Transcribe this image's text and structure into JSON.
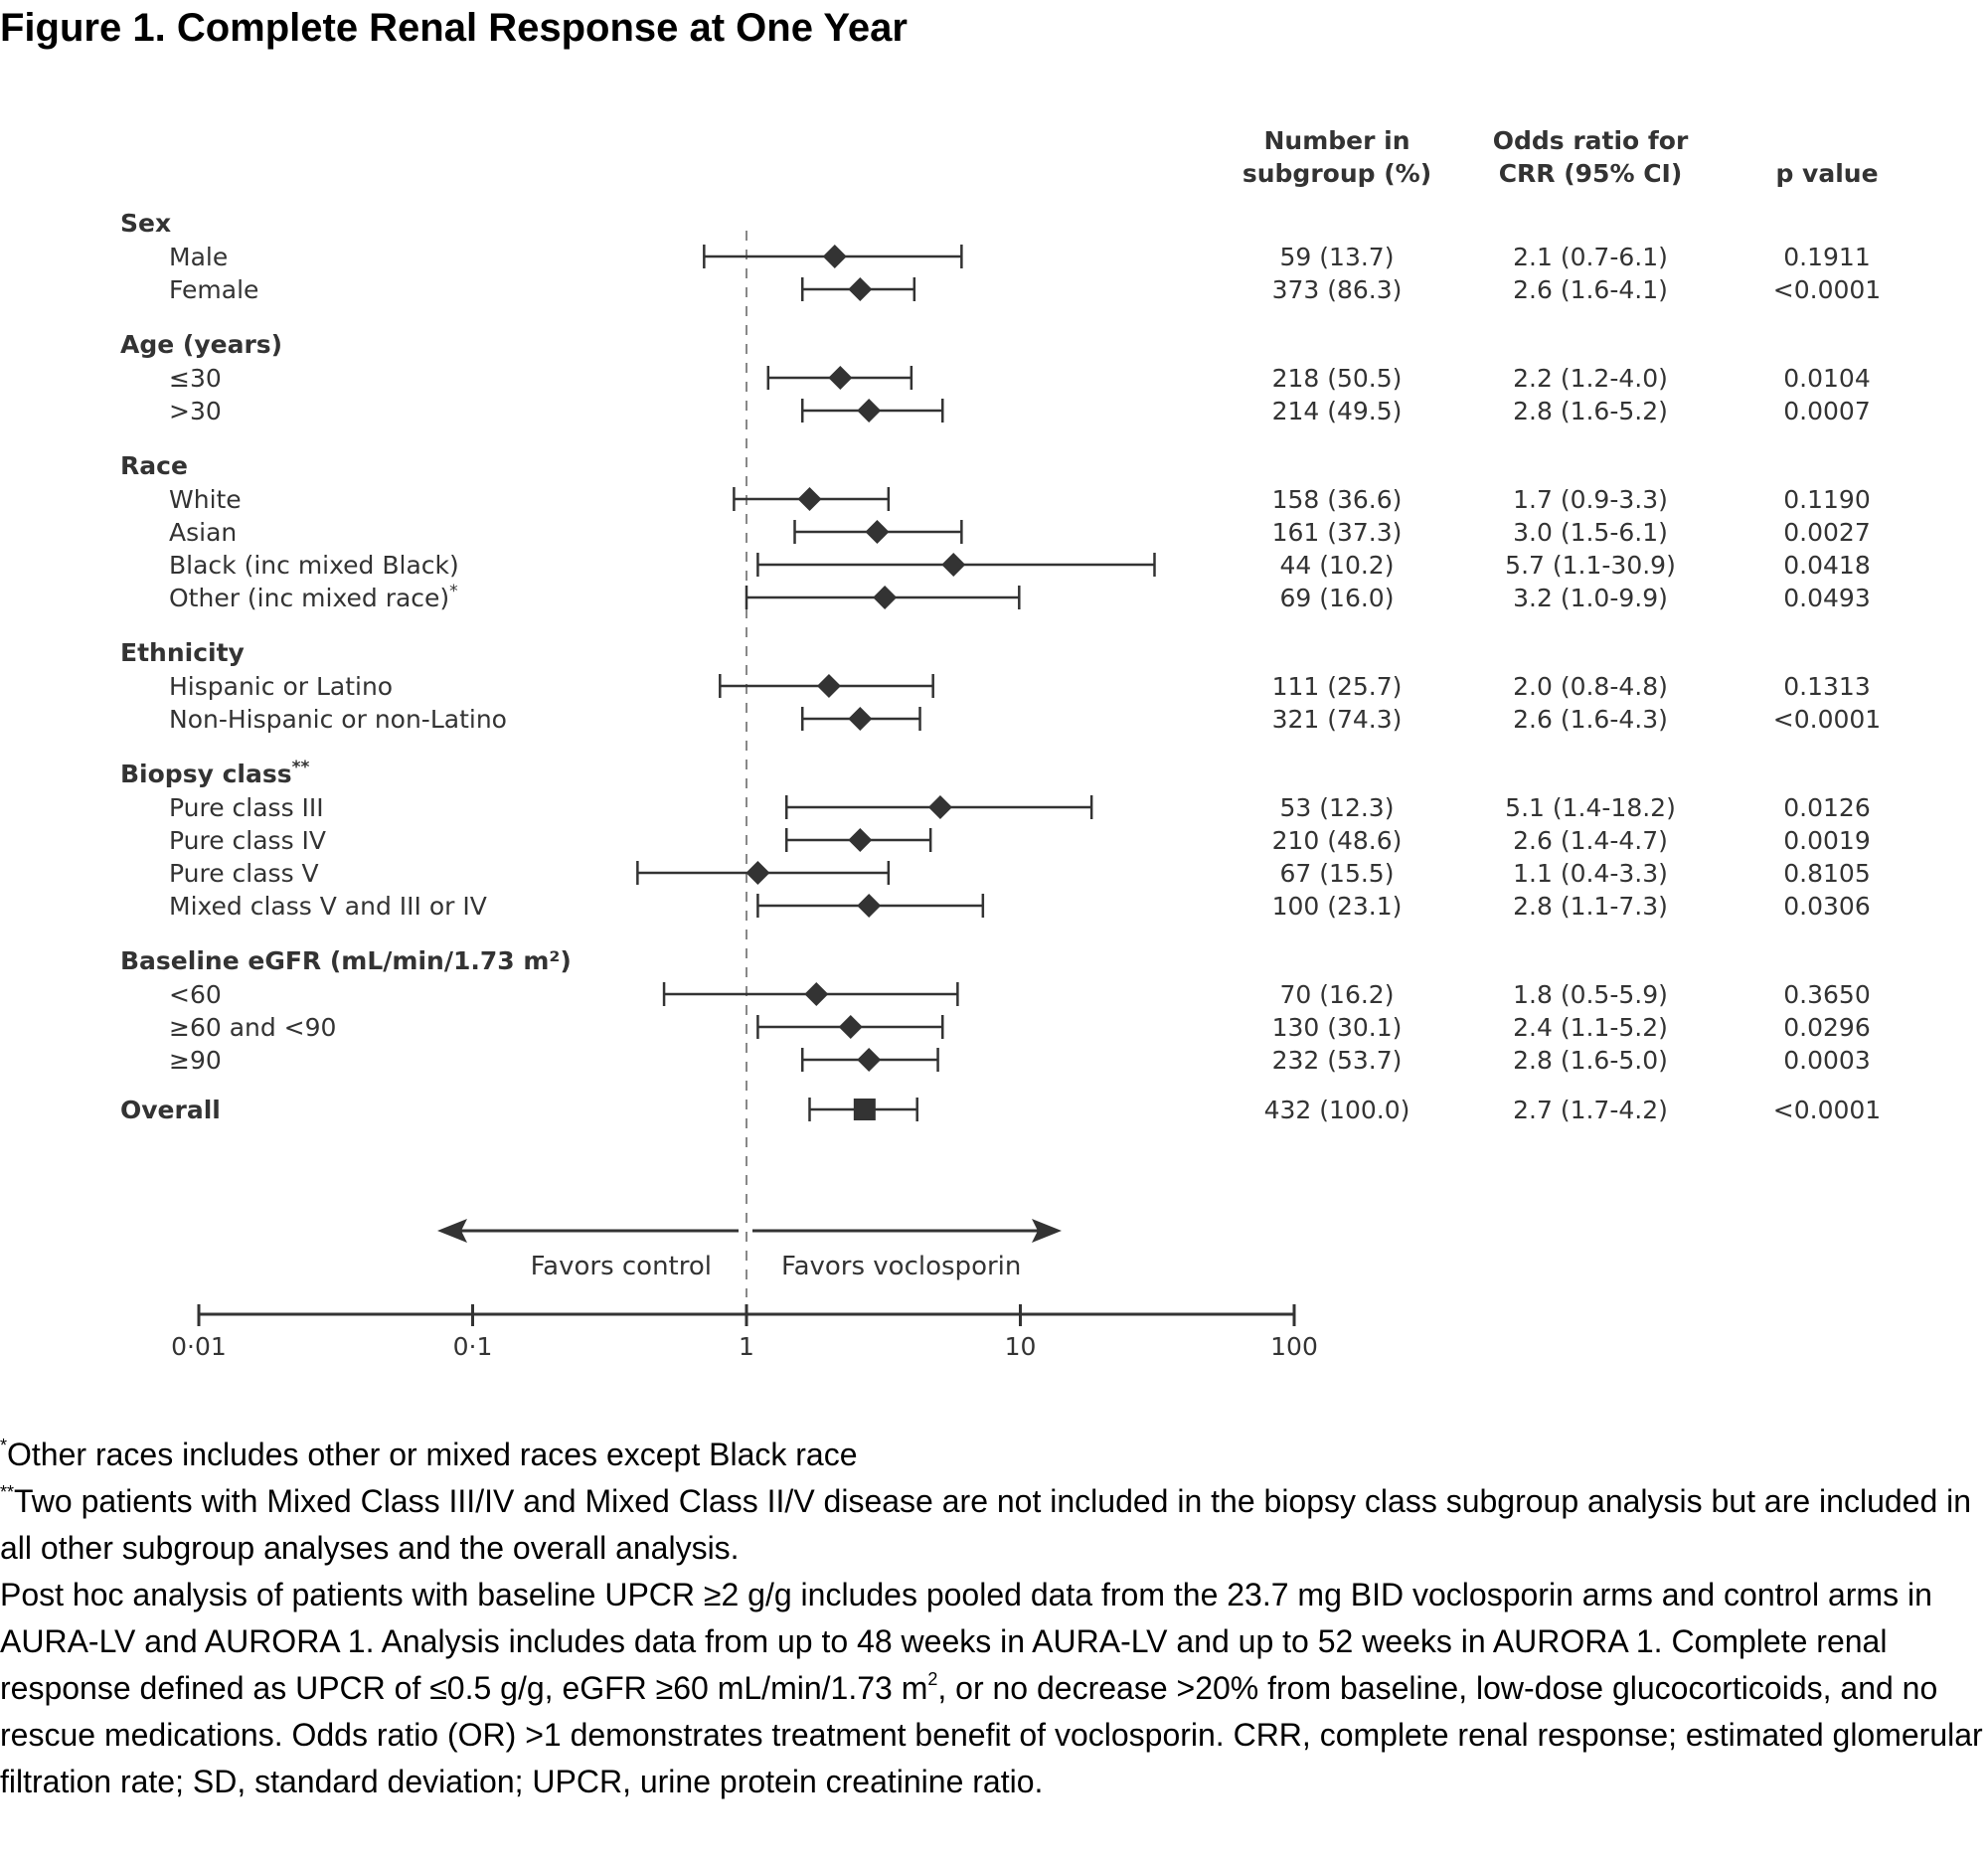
{
  "title": "Figure 1. Complete Renal Response at One Year",
  "chart_data": {
    "type": "forest",
    "x_scale": "log",
    "xlim": [
      0.01,
      100
    ],
    "reference_line": 1,
    "x_ticks": [
      0.01,
      0.1,
      1,
      10,
      100
    ],
    "x_tick_labels": [
      "0·01",
      "0·1",
      "1",
      "10",
      "100"
    ],
    "favors_left": "Favors control",
    "favors_right": "Favors voclosporin",
    "columns": {
      "n_line1": "Number in",
      "n_line2": "subgroup (%)",
      "or_line1": "Odds ratio for",
      "or_line2": "CRR (95% CI)",
      "p": "p value"
    },
    "groups": [
      {
        "label": "Sex",
        "sup": "",
        "rows": [
          {
            "label": "Male",
            "sup": "",
            "or": 2.1,
            "lo": 0.7,
            "hi": 6.1,
            "n": "59 (13.7)",
            "or_text": "2.1 (0.7-6.1)",
            "p": "0.1911"
          },
          {
            "label": "Female",
            "sup": "",
            "or": 2.6,
            "lo": 1.6,
            "hi": 4.1,
            "n": "373 (86.3)",
            "or_text": "2.6 (1.6-4.1)",
            "p": "<0.0001"
          }
        ]
      },
      {
        "label": "Age (years)",
        "sup": "",
        "rows": [
          {
            "label": "≤30",
            "sup": "",
            "or": 2.2,
            "lo": 1.2,
            "hi": 4.0,
            "n": "218 (50.5)",
            "or_text": "2.2 (1.2-4.0)",
            "p": "0.0104"
          },
          {
            "label": ">30",
            "sup": "",
            "or": 2.8,
            "lo": 1.6,
            "hi": 5.2,
            "n": "214 (49.5)",
            "or_text": "2.8 (1.6-5.2)",
            "p": "0.0007"
          }
        ]
      },
      {
        "label": "Race",
        "sup": "",
        "rows": [
          {
            "label": "White",
            "sup": "",
            "or": 1.7,
            "lo": 0.9,
            "hi": 3.3,
            "n": "158 (36.6)",
            "or_text": "1.7 (0.9-3.3)",
            "p": "0.1190"
          },
          {
            "label": "Asian",
            "sup": "",
            "or": 3.0,
            "lo": 1.5,
            "hi": 6.1,
            "n": "161 (37.3)",
            "or_text": "3.0 (1.5-6.1)",
            "p": "0.0027"
          },
          {
            "label": "Black (inc mixed Black)",
            "sup": "",
            "or": 5.7,
            "lo": 1.1,
            "hi": 30.9,
            "n": "44 (10.2)",
            "or_text": "5.7 (1.1-30.9)",
            "p": "0.0418"
          },
          {
            "label": "Other (inc mixed race)",
            "sup": "*",
            "or": 3.2,
            "lo": 1.0,
            "hi": 9.9,
            "n": "69 (16.0)",
            "or_text": "3.2 (1.0-9.9)",
            "p": "0.0493"
          }
        ]
      },
      {
        "label": "Ethnicity",
        "sup": "",
        "rows": [
          {
            "label": "Hispanic or Latino",
            "sup": "",
            "or": 2.0,
            "lo": 0.8,
            "hi": 4.8,
            "n": "111 (25.7)",
            "or_text": "2.0 (0.8-4.8)",
            "p": "0.1313"
          },
          {
            "label": "Non-Hispanic or non-Latino",
            "sup": "",
            "or": 2.6,
            "lo": 1.6,
            "hi": 4.3,
            "n": "321 (74.3)",
            "or_text": "2.6 (1.6-4.3)",
            "p": "<0.0001"
          }
        ]
      },
      {
        "label": "Biopsy class",
        "sup": "**",
        "rows": [
          {
            "label": "Pure class III",
            "sup": "",
            "or": 5.1,
            "lo": 1.4,
            "hi": 18.2,
            "n": "53 (12.3)",
            "or_text": "5.1 (1.4-18.2)",
            "p": "0.0126"
          },
          {
            "label": "Pure class IV",
            "sup": "",
            "or": 2.6,
            "lo": 1.4,
            "hi": 4.7,
            "n": "210 (48.6)",
            "or_text": "2.6 (1.4-4.7)",
            "p": "0.0019"
          },
          {
            "label": "Pure class V",
            "sup": "",
            "or": 1.1,
            "lo": 0.4,
            "hi": 3.3,
            "n": "67 (15.5)",
            "or_text": "1.1 (0.4-3.3)",
            "p": "0.8105"
          },
          {
            "label": "Mixed class V and III or IV",
            "sup": "",
            "or": 2.8,
            "lo": 1.1,
            "hi": 7.3,
            "n": "100 (23.1)",
            "or_text": "2.8 (1.1-7.3)",
            "p": "0.0306"
          }
        ]
      },
      {
        "label": "Baseline eGFR (mL/min/1.73 m²)",
        "sup": "",
        "rows": [
          {
            "label": "<60",
            "sup": "",
            "or": 1.8,
            "lo": 0.5,
            "hi": 5.9,
            "n": "70 (16.2)",
            "or_text": "1.8 (0.5-5.9)",
            "p": "0.3650"
          },
          {
            "label": "≥60 and <90",
            "sup": "",
            "or": 2.4,
            "lo": 1.1,
            "hi": 5.2,
            "n": "130 (30.1)",
            "or_text": "2.4 (1.1-5.2)",
            "p": "0.0296"
          },
          {
            "label": "≥90",
            "sup": "",
            "or": 2.8,
            "lo": 1.6,
            "hi": 5.0,
            "n": "232 (53.7)",
            "or_text": "2.8 (1.6-5.0)",
            "p": "0.0003"
          }
        ]
      }
    ],
    "overall": {
      "label": "Overall",
      "or": 2.7,
      "lo": 1.7,
      "hi": 4.2,
      "n": "432 (100.0)",
      "or_text": "2.7 (1.7-4.2)",
      "p": "<0.0001"
    }
  },
  "footnotes": {
    "f1_mark": "*",
    "f1_text": "Other races includes other or mixed races except Black race",
    "f2_mark": "**",
    "f2_text": "Two patients with Mixed Class III/IV and Mixed Class II/V disease are not included in the biopsy class subgroup analysis but are included in all other subgroup analyses and the overall analysis.",
    "f3_part1": "Post hoc analysis of patients with baseline UPCR ≥2 g/g includes pooled data from the 23.7 mg BID voclosporin arms and control arms in AURA-LV and AURORA 1. Analysis includes data from up to 48 weeks in AURA-LV and up to 52 weeks in AURORA 1. Complete renal response defined as UPCR of ≤0.5 g/g, eGFR ≥60 mL/min/1.73 m",
    "f3_sup": "2",
    "f3_part2": ", or no decrease >20% from baseline, low-dose glucocorticoids, and no rescue medications. Odds ratio (OR) >1 demonstrates treatment benefit of voclosporin. CRR, complete renal response; estimated glomerular filtration rate; SD, standard deviation; UPCR, urine protein creatinine ratio."
  }
}
